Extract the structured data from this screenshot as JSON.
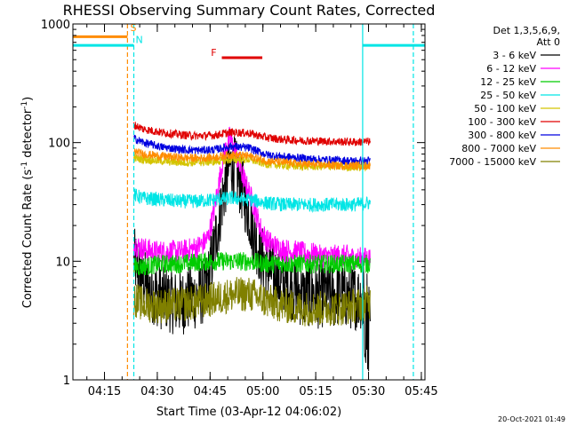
{
  "chart_data": {
    "type": "line",
    "title": "RHESSI Observing Summary Count Rates, Corrected",
    "xlabel": "Start Time (03-Apr-12 04:06:02)",
    "ylabel_main": "Corrected Count Rate (s",
    "ylabel_sup1": "-1",
    "ylabel_mid": " detector",
    "ylabel_sup2": "-1",
    "ylabel_end": ")",
    "yscale": "log",
    "ylim": [
      1,
      1000
    ],
    "xlim_minutes": [
      0,
      100
    ],
    "x_ticks": [
      {
        "label": "04:15",
        "minute": 8.97
      },
      {
        "label": "04:30",
        "minute": 23.97
      },
      {
        "label": "04:45",
        "minute": 38.97
      },
      {
        "label": "05:00",
        "minute": 53.97
      },
      {
        "label": "05:15",
        "minute": 68.97
      },
      {
        "label": "05:30",
        "minute": 83.97
      },
      {
        "label": "05:45",
        "minute": 98.97
      }
    ],
    "y_ticks": [
      {
        "label": "1",
        "value": 1
      },
      {
        "label": "10",
        "value": 10
      },
      {
        "label": "100",
        "value": 100
      },
      {
        "label": "1000",
        "value": 1000
      }
    ],
    "legend": {
      "placement": "right",
      "header_line1": "Det 1,3,5,6,9,",
      "header_line2": "Att 0"
    },
    "annotations": [
      {
        "label": "S",
        "color": "#ff8c00"
      },
      {
        "label": "N",
        "color": "#00e5e5"
      },
      {
        "label": "F",
        "color": "#e00000"
      }
    ],
    "flag_bars": [
      {
        "name": "S",
        "color": "#ff8c00",
        "start": 0,
        "end": 15.5,
        "level": 780
      },
      {
        "name": "N",
        "color": "#00e5e5",
        "start": 0,
        "end": 17.3,
        "level": 660
      },
      {
        "name": "N",
        "color": "#00e5e5",
        "start": 82.3,
        "end": 100,
        "level": 660
      },
      {
        "name": "F",
        "color": "#e00000",
        "start": 42.3,
        "end": 53.8,
        "level": 520
      }
    ],
    "vlines": [
      {
        "minute": 15.5,
        "color": "#ff8c00",
        "style": "dashed"
      },
      {
        "minute": 17.3,
        "color": "#00e5e5",
        "style": "dashed"
      },
      {
        "minute": 82.3,
        "color": "#00e5e5",
        "style": "solid"
      },
      {
        "minute": 96.7,
        "color": "#00e5e5",
        "style": "dashed"
      }
    ],
    "data_range_minutes": [
      17.3,
      84.5
    ],
    "series": [
      {
        "name": "3 - 6 keV",
        "color": "#000000",
        "x": [
          17.5,
          19,
          21,
          23,
          25,
          27,
          29,
          31,
          33,
          35,
          37,
          38.5,
          40,
          41.5,
          43,
          44.5,
          46,
          47.5,
          49,
          50.5,
          52,
          53.5,
          55,
          56.5,
          58,
          60,
          62,
          64,
          66,
          68,
          70,
          72,
          74,
          76,
          78,
          80,
          82,
          84
        ],
        "y": [
          10,
          8,
          6,
          5.5,
          5,
          4.8,
          4.5,
          4.5,
          4.8,
          5,
          5.5,
          7,
          12,
          22,
          40,
          65,
          60,
          45,
          32,
          22,
          15,
          11,
          9,
          8,
          7,
          6.5,
          6,
          5.5,
          5,
          5.5,
          5,
          5.5,
          5,
          5.5,
          5,
          5,
          5,
          3
        ]
      },
      {
        "name": "6 - 12 keV",
        "color": "#ff00ff",
        "x": [
          17.5,
          19,
          21,
          23,
          25,
          27,
          29,
          31,
          33,
          35,
          37,
          38.5,
          40,
          41.5,
          43,
          44.5,
          46,
          47.5,
          49,
          50.5,
          52,
          53.5,
          55,
          56.5,
          58,
          60,
          62,
          64,
          66,
          68,
          70,
          72,
          74,
          76,
          78,
          80,
          82,
          84
        ],
        "y": [
          14,
          13,
          12.5,
          12,
          12,
          12,
          12,
          12,
          12.5,
          13,
          14,
          16,
          25,
          45,
          80,
          110,
          85,
          60,
          45,
          35,
          25,
          18,
          15,
          14,
          13,
          12.5,
          12,
          12,
          11.5,
          11.5,
          11,
          11,
          11,
          11,
          11,
          10.5,
          10.5,
          10.5
        ]
      },
      {
        "name": "12 - 25 keV",
        "color": "#00cc00",
        "x": [
          17.5,
          20,
          25,
          30,
          35,
          40,
          45,
          50,
          55,
          60,
          65,
          70,
          75,
          80,
          84
        ],
        "y": [
          9,
          9,
          9.5,
          9.5,
          9.8,
          10,
          10,
          10,
          9.5,
          9.5,
          9.5,
          9.5,
          9.5,
          9.5,
          9.5
        ]
      },
      {
        "name": "25 - 50 keV",
        "color": "#00e5e5",
        "x": [
          17.5,
          20,
          25,
          30,
          35,
          40,
          45,
          50,
          55,
          60,
          65,
          70,
          75,
          80,
          84
        ],
        "y": [
          36,
          34,
          33,
          32,
          32,
          33,
          34,
          33,
          31,
          30,
          30,
          30,
          30,
          30,
          31
        ]
      },
      {
        "name": "50 - 100 keV",
        "color": "#d4c400",
        "x": [
          17.5,
          20,
          25,
          30,
          35,
          40,
          45,
          50,
          55,
          60,
          65,
          70,
          75,
          80,
          84
        ],
        "y": [
          74,
          72,
          70,
          68,
          68,
          69,
          72,
          72,
          66,
          64,
          63,
          63,
          63,
          62,
          63
        ]
      },
      {
        "name": "100 - 300 keV",
        "color": "#e00000",
        "x": [
          17.5,
          20,
          25,
          30,
          35,
          40,
          45,
          50,
          55,
          60,
          65,
          70,
          75,
          80,
          84
        ],
        "y": [
          140,
          130,
          122,
          117,
          114,
          115,
          122,
          120,
          110,
          106,
          104,
          103,
          102,
          101,
          102
        ]
      },
      {
        "name": "300 - 800 keV",
        "color": "#0000e0",
        "x": [
          17.5,
          20,
          25,
          30,
          35,
          40,
          45,
          50,
          55,
          60,
          65,
          70,
          75,
          80,
          84
        ],
        "y": [
          108,
          100,
          92,
          88,
          86,
          87,
          93,
          90,
          79,
          76,
          74,
          72,
          71,
          70,
          70
        ]
      },
      {
        "name": "800 - 7000 keV",
        "color": "#ff8c00",
        "x": [
          17.5,
          20,
          25,
          30,
          35,
          40,
          45,
          50,
          55,
          60,
          65,
          70,
          75,
          80,
          84
        ],
        "y": [
          84,
          80,
          77,
          75,
          74,
          75,
          79,
          77,
          70,
          68,
          66,
          65,
          64,
          64,
          64
        ]
      },
      {
        "name": "7000 - 15000 keV",
        "color": "#808000",
        "x": [
          17.5,
          20,
          25,
          30,
          35,
          40,
          45,
          50,
          55,
          60,
          65,
          70,
          75,
          80,
          84
        ],
        "y": [
          4.8,
          4.3,
          4.2,
          4.3,
          4.5,
          4.8,
          5.2,
          5.3,
          4.6,
          4.2,
          4.0,
          4.0,
          4.0,
          4.2,
          4.5
        ]
      }
    ],
    "footer_date": "20-Oct-2021 01:49"
  }
}
